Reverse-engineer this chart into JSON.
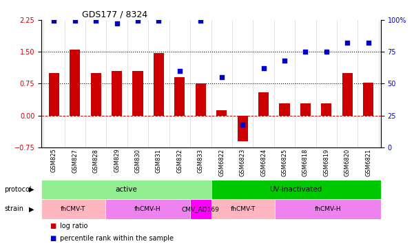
{
  "title": "GDS177 / 8324",
  "samples": [
    "GSM825",
    "GSM827",
    "GSM828",
    "GSM829",
    "GSM830",
    "GSM831",
    "GSM832",
    "GSM833",
    "GSM6822",
    "GSM6823",
    "GSM6824",
    "GSM6825",
    "GSM6818",
    "GSM6819",
    "GSM6820",
    "GSM6821"
  ],
  "log_ratio": [
    1.0,
    1.55,
    1.0,
    1.05,
    1.05,
    1.47,
    0.9,
    0.75,
    0.12,
    -0.6,
    0.55,
    0.28,
    0.28,
    0.28,
    1.0,
    0.78
  ],
  "percentile": [
    99,
    99,
    99,
    97,
    99,
    99,
    60,
    99,
    55,
    18,
    62,
    68,
    75,
    75,
    82,
    82
  ],
  "protocol_groups": [
    {
      "label": "active",
      "start": 0,
      "end": 8,
      "color": "#90EE90"
    },
    {
      "label": "UV-inactivated",
      "start": 8,
      "end": 16,
      "color": "#00C800"
    }
  ],
  "strain_groups": [
    {
      "label": "fhCMV-T",
      "start": 0,
      "end": 3,
      "color": "#FFB6C1"
    },
    {
      "label": "fhCMV-H",
      "start": 3,
      "end": 7,
      "color": "#EE82EE"
    },
    {
      "label": "CMV_AD169",
      "start": 7,
      "end": 8,
      "color": "#FF00FF"
    },
    {
      "label": "fhCMV-T",
      "start": 8,
      "end": 11,
      "color": "#FFB6C1"
    },
    {
      "label": "fhCMV-H",
      "start": 11,
      "end": 16,
      "color": "#EE82EE"
    }
  ],
  "bar_color": "#CC0000",
  "dot_color": "#0000CC",
  "left_ylim": [
    -0.75,
    2.25
  ],
  "right_ylim": [
    0,
    100
  ],
  "left_yticks": [
    -0.75,
    0,
    0.75,
    1.5,
    2.25
  ],
  "right_yticks": [
    0,
    25,
    50,
    75,
    100
  ],
  "right_yticklabels": [
    "0",
    "25",
    "50",
    "75",
    "100%"
  ],
  "hlines": [
    0.75,
    1.5
  ],
  "zero_line": 0.0,
  "legend_items": [
    {
      "label": "log ratio",
      "color": "#CC0000",
      "marker": "s"
    },
    {
      "label": "percentile rank within the sample",
      "color": "#0000CC",
      "marker": "s"
    }
  ]
}
